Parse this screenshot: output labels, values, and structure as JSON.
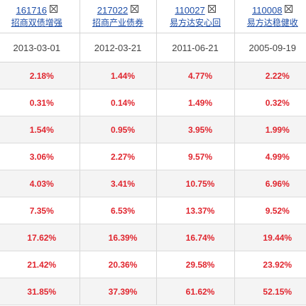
{
  "funds": [
    {
      "code": "161716",
      "name": "招商双债增强",
      "start_date": "2013-03-01"
    },
    {
      "code": "217022",
      "name": "招商产业债券",
      "start_date": "2012-03-21"
    },
    {
      "code": "110027",
      "name": "易方达安心回",
      "start_date": "2011-06-21"
    },
    {
      "code": "110008",
      "name": "易方达稳健收",
      "start_date": "2005-09-19"
    }
  ],
  "returns": [
    [
      "2.18%",
      "1.44%",
      "4.77%",
      "2.22%"
    ],
    [
      "0.31%",
      "0.14%",
      "1.49%",
      "0.32%"
    ],
    [
      "1.54%",
      "0.95%",
      "3.95%",
      "1.99%"
    ],
    [
      "3.06%",
      "2.27%",
      "9.57%",
      "4.99%"
    ],
    [
      "4.03%",
      "3.41%",
      "10.75%",
      "6.96%"
    ],
    [
      "7.35%",
      "6.53%",
      "13.37%",
      "9.52%"
    ],
    [
      "17.62%",
      "16.39%",
      "16.74%",
      "19.44%"
    ],
    [
      "21.42%",
      "20.36%",
      "29.58%",
      "23.92%"
    ],
    [
      "31.85%",
      "37.39%",
      "61.62%",
      "52.15%"
    ]
  ],
  "colors": {
    "link": "#1f4fa8",
    "value": "#e0262f",
    "row_alt": "#f4f4f4",
    "border": "#d6d6d6"
  },
  "icons": {
    "remove": "close-box-icon"
  }
}
